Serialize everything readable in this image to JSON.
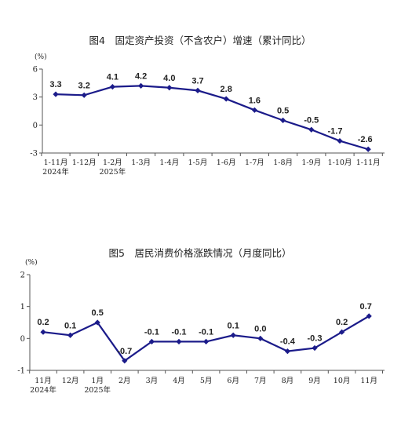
{
  "chart_data": [
    {
      "type": "line",
      "title": "图4　固定资产投资（不含农户）增速（累计同比）",
      "ylabel": "(%)",
      "xlabel": "",
      "ylim": [
        -3,
        6
      ],
      "yticks": [
        "6",
        "3",
        "0",
        "-3"
      ],
      "categories": [
        "1-11月",
        "1-12月",
        "1-2月",
        "1-3月",
        "1-4月",
        "1-5月",
        "1-6月",
        "1-7月",
        "1-8月",
        "1-9月",
        "1-10月",
        "1-11月"
      ],
      "category_sublabels": [
        "2024年",
        "",
        "2025年",
        "",
        "",
        "",
        "",
        "",
        "",
        "",
        "",
        ""
      ],
      "values": [
        3.3,
        3.2,
        4.1,
        4.2,
        4.0,
        3.7,
        2.8,
        1.6,
        0.5,
        -0.5,
        -1.7,
        -2.6
      ],
      "value_labels": [
        "3.3",
        "3.2",
        "4.1",
        "4.2",
        "4.0",
        "3.7",
        "2.8",
        "1.6",
        "0.5",
        "-0.5",
        "-1.7",
        "-2.6"
      ],
      "color": "#1b1b8a",
      "grid": false,
      "legend": "none"
    },
    {
      "type": "line",
      "title": "图5　居民消费价格涨跌情况（月度同比）",
      "ylabel": "(%)",
      "xlabel": "",
      "ylim": [
        -1,
        2
      ],
      "yticks": [
        "2",
        "1",
        "0",
        "-1"
      ],
      "categories": [
        "11月",
        "12月",
        "1月",
        "2月",
        "3月",
        "4月",
        "5月",
        "6月",
        "7月",
        "8月",
        "9月",
        "10月",
        "11月"
      ],
      "category_sublabels": [
        "2024年",
        "",
        "2025年",
        "",
        "",
        "",
        "",
        "",
        "",
        "",
        "",
        "",
        ""
      ],
      "values": [
        0.2,
        0.1,
        0.5,
        -0.7,
        -0.1,
        -0.1,
        -0.1,
        0.1,
        0.0,
        -0.4,
        -0.3,
        0.2,
        0.7
      ],
      "value_labels": [
        "0.2",
        "0.1",
        "0.5",
        "-0.7",
        "-0.1",
        "-0.1",
        "-0.1",
        "0.1",
        "0.0",
        "-0.4",
        "-0.3",
        "0.2",
        "0.7"
      ],
      "color": "#1b1b8a",
      "grid": false,
      "legend": "none"
    }
  ]
}
